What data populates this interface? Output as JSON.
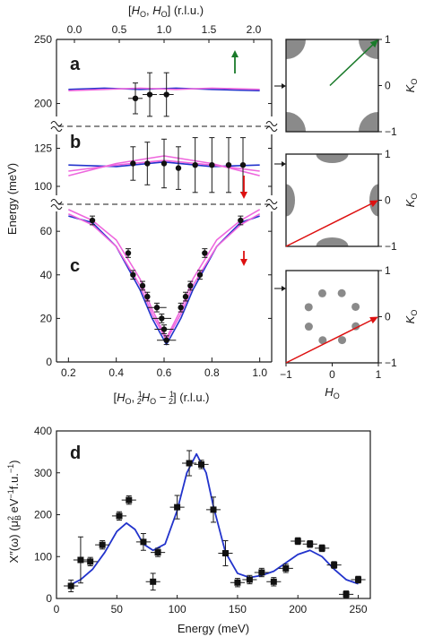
{
  "chart_data": [
    {
      "type": "scatter",
      "panel": "a",
      "top_axis_label": "[H_O, H_O] (r.l.u.)",
      "top_ticks": [
        "0.0",
        "0.5",
        "1.0",
        "1.5",
        "2.0"
      ],
      "ylabel": "Energy (meV)",
      "ylim": [
        185,
        250
      ],
      "yticks": [
        "200",
        "250"
      ],
      "points": [
        {
          "x": 0.48,
          "y": 204,
          "err": 12,
          "xerr": 0.03
        },
        {
          "x": 0.54,
          "y": 207,
          "err": 17,
          "xerr": 0.03
        },
        {
          "x": 0.61,
          "y": 207,
          "err": 17,
          "xerr": 0.03
        }
      ],
      "curves": [
        {
          "color": "#2233cc",
          "x": [
            0.2,
            0.35,
            0.5,
            0.65,
            0.8,
            1.0
          ],
          "y": [
            211,
            212,
            211,
            212,
            211,
            210
          ]
        },
        {
          "color": "#ee66dd",
          "x": [
            0.2,
            0.35,
            0.5,
            0.65,
            0.8,
            1.0
          ],
          "y": [
            210,
            211,
            212,
            211,
            212,
            211
          ]
        }
      ],
      "arrow_color": "#1a7a2a"
    },
    {
      "type": "scatter",
      "panel": "b",
      "ylim": [
        90,
        140
      ],
      "yticks": [
        "100",
        "125"
      ],
      "points": [
        {
          "x": 0.47,
          "y": 115,
          "err": 11
        },
        {
          "x": 0.53,
          "y": 115,
          "err": 14
        },
        {
          "x": 0.6,
          "y": 115,
          "err": 16
        },
        {
          "x": 0.66,
          "y": 112,
          "err": 14
        },
        {
          "x": 0.73,
          "y": 114,
          "err": 18
        },
        {
          "x": 0.8,
          "y": 114,
          "err": 18
        },
        {
          "x": 0.87,
          "y": 114,
          "err": 18
        },
        {
          "x": 0.93,
          "y": 114,
          "err": 18
        }
      ],
      "curves": [
        {
          "color": "#2233cc",
          "x": [
            0.2,
            0.4,
            0.6,
            0.8,
            1.0
          ],
          "y": [
            114,
            113,
            116,
            113,
            114
          ]
        },
        {
          "color": "#ee66dd",
          "x": [
            0.2,
            0.4,
            0.6,
            0.8,
            1.0
          ],
          "y": [
            107,
            115,
            120,
            115,
            107
          ]
        },
        {
          "color": "#ee66dd",
          "x": [
            0.2,
            0.4,
            0.6,
            0.8,
            1.0
          ],
          "y": [
            110,
            114,
            117,
            114,
            110
          ]
        }
      ],
      "arrow_color": "#dd1111"
    },
    {
      "type": "scatter",
      "panel": "c",
      "xlabel": "[H_O, 1/2 H_O − 1/2] (r.l.u.)",
      "xlim": [
        0.15,
        1.05
      ],
      "xticks": [
        "0.2",
        "0.4",
        "0.6",
        "0.8",
        "1.0"
      ],
      "ylim": [
        0,
        72
      ],
      "yticks": [
        "0",
        "20",
        "40",
        "60"
      ],
      "points": [
        {
          "x": 0.3,
          "y": 65,
          "err": 2
        },
        {
          "x": 0.45,
          "y": 50,
          "err": 2
        },
        {
          "x": 0.47,
          "y": 40,
          "err": 2
        },
        {
          "x": 0.51,
          "y": 35,
          "err": 2
        },
        {
          "x": 0.53,
          "y": 30,
          "err": 2
        },
        {
          "x": 0.57,
          "y": 25,
          "err": 2,
          "xerr": 0.04
        },
        {
          "x": 0.59,
          "y": 20,
          "err": 2,
          "xerr": 0.04
        },
        {
          "x": 0.6,
          "y": 15,
          "err": 2,
          "xerr": 0.04
        },
        {
          "x": 0.61,
          "y": 10,
          "err": 2,
          "xerr": 0.04
        },
        {
          "x": 0.67,
          "y": 25,
          "err": 2
        },
        {
          "x": 0.69,
          "y": 30,
          "err": 2
        },
        {
          "x": 0.71,
          "y": 35,
          "err": 2
        },
        {
          "x": 0.75,
          "y": 40,
          "err": 2
        },
        {
          "x": 0.77,
          "y": 50,
          "err": 2
        },
        {
          "x": 0.92,
          "y": 65,
          "err": 2
        }
      ],
      "curves": [
        {
          "color": "#2233cc",
          "x": [
            0.2,
            0.3,
            0.4,
            0.5,
            0.55,
            0.61,
            0.67,
            0.72,
            0.82,
            0.92,
            1.0
          ],
          "y": [
            67,
            64,
            53,
            33,
            20,
            8,
            20,
            33,
            53,
            64,
            67
          ]
        },
        {
          "color": "#ee66dd",
          "x": [
            0.2,
            0.3,
            0.4,
            0.5,
            0.55,
            0.61,
            0.67,
            0.72,
            0.82,
            0.92,
            1.0
          ],
          "y": [
            70,
            65,
            56,
            38,
            24,
            11,
            24,
            38,
            56,
            65,
            70
          ]
        },
        {
          "color": "#ee66dd",
          "x": [
            0.2,
            0.3,
            0.4,
            0.5,
            0.55,
            0.61,
            0.67,
            0.72,
            0.82,
            0.92,
            1.0
          ],
          "y": [
            68,
            63,
            53,
            35,
            22,
            10,
            22,
            35,
            53,
            63,
            68
          ]
        }
      ],
      "arrow_color": "#dd1111"
    },
    {
      "type": "line",
      "panel": "d",
      "xlabel": "Energy (meV)",
      "ylabel": "X″(ω) (μB² eV⁻¹f.u.⁻¹)",
      "xlim": [
        0,
        260
      ],
      "ylim": [
        0,
        400
      ],
      "xticks": [
        "0",
        "50",
        "100",
        "150",
        "200",
        "250"
      ],
      "yticks": [
        "0",
        "100",
        "200",
        "300",
        "400"
      ],
      "points": [
        {
          "x": 12,
          "y": 30,
          "err": 14,
          "xerr": 6
        },
        {
          "x": 20,
          "y": 92,
          "err": 55,
          "xerr": 6
        },
        {
          "x": 28,
          "y": 88,
          "err": 10,
          "xerr": 6
        },
        {
          "x": 38,
          "y": 128,
          "err": 10,
          "xerr": 6
        },
        {
          "x": 52,
          "y": 197,
          "err": 10,
          "xerr": 6
        },
        {
          "x": 60,
          "y": 235,
          "err": 10,
          "xerr": 6
        },
        {
          "x": 72,
          "y": 135,
          "err": 20,
          "xerr": 6
        },
        {
          "x": 80,
          "y": 40,
          "err": 20,
          "xerr": 6
        },
        {
          "x": 84,
          "y": 110,
          "err": 10,
          "xerr": 6
        },
        {
          "x": 100,
          "y": 218,
          "err": 28,
          "xerr": 6
        },
        {
          "x": 110,
          "y": 323,
          "err": 30,
          "xerr": 6
        },
        {
          "x": 120,
          "y": 320,
          "err": 10,
          "xerr": 6
        },
        {
          "x": 130,
          "y": 212,
          "err": 30,
          "xerr": 6
        },
        {
          "x": 140,
          "y": 108,
          "err": 30,
          "xerr": 6
        },
        {
          "x": 150,
          "y": 38,
          "err": 10,
          "xerr": 6
        },
        {
          "x": 160,
          "y": 45,
          "err": 10,
          "xerr": 6
        },
        {
          "x": 170,
          "y": 62,
          "err": 10,
          "xerr": 6
        },
        {
          "x": 180,
          "y": 40,
          "err": 10,
          "xerr": 6
        },
        {
          "x": 190,
          "y": 72,
          "err": 10,
          "xerr": 6
        },
        {
          "x": 200,
          "y": 137,
          "err": 8,
          "xerr": 6
        },
        {
          "x": 210,
          "y": 130,
          "err": 8,
          "xerr": 6
        },
        {
          "x": 220,
          "y": 120,
          "err": 8,
          "xerr": 6
        },
        {
          "x": 230,
          "y": 80,
          "err": 8,
          "xerr": 6
        },
        {
          "x": 240,
          "y": 10,
          "err": 8,
          "xerr": 6
        },
        {
          "x": 250,
          "y": 45,
          "err": 8,
          "xerr": 6
        }
      ],
      "fit": {
        "color": "#2233cc",
        "x": [
          10,
          20,
          30,
          40,
          50,
          58,
          65,
          72,
          80,
          90,
          100,
          108,
          116,
          124,
          130,
          140,
          150,
          160,
          170,
          180,
          190,
          200,
          210,
          220,
          230,
          240,
          250
        ],
        "y": [
          30,
          45,
          70,
          110,
          160,
          180,
          165,
          130,
          115,
          130,
          210,
          300,
          345,
          300,
          220,
          110,
          60,
          50,
          55,
          65,
          85,
          105,
          115,
          100,
          70,
          45,
          35
        ]
      }
    }
  ],
  "maps": [
    {
      "axis_label_y": "K_O",
      "yticks": [
        "1",
        "0",
        "−1"
      ],
      "arrow_color": "#1a7a2a"
    },
    {
      "axis_label_y": "K_O",
      "yticks": [
        "1",
        "0",
        "−1"
      ],
      "arrow_color": "#dd1111"
    },
    {
      "axis_label_y": "K_O",
      "yticks": [
        "1",
        "0",
        "−1"
      ],
      "xticks": [
        "−1",
        "0",
        "1"
      ],
      "axis_label_x": "H_O",
      "arrow_color": "#dd1111"
    }
  ],
  "labels": {
    "panel_a": "a",
    "panel_b": "b",
    "panel_c": "c",
    "panel_d": "d",
    "top_axis_H1": "[",
    "top_axis_H2": "H",
    "top_axis_sub": "O",
    "top_axis_rest": ", ",
    "top_axis_H3": "H",
    "top_axis_rlu": "] (r.l.u.)",
    "energy_label": "Energy (meV)",
    "energy_label_d": "Energy (meV)",
    "yl_d": "X″(ω) (μ",
    "yl_d_b": "B",
    "yl_d_2": "2",
    "yl_d_e": " eV",
    "yl_d_m1": "−1",
    "yl_d_fu": "f.u.",
    "yl_d_m1b": "−1",
    "yl_d_end": ")",
    "xl_c_open": "[",
    "xl_c_H": "H",
    "xl_c_O": "O",
    "xl_c_comma": ", ",
    "xl_c_half": "1",
    "xl_c_two": "2",
    "xl_c_H2": "H",
    "xl_c_O2": "O",
    "xl_c_minus": " − ",
    "xl_c_half2": "1",
    "xl_c_two2": "2",
    "xl_c_rlu": "] (r.l.u.)",
    "map_K": "K",
    "map_O": "O",
    "map_H": "H",
    "map_HO": "O"
  }
}
